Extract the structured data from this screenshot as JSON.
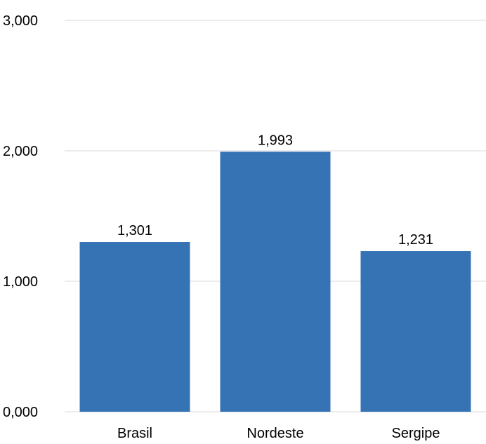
{
  "chart_data": {
    "type": "bar",
    "categories": [
      "Brasil",
      "Nordeste",
      "Sergipe"
    ],
    "values": [
      1.301,
      1.993,
      1.231
    ],
    "value_labels": [
      "1,301",
      "1,993",
      "1,231"
    ],
    "ylim": [
      0,
      3
    ],
    "y_ticks": [
      0,
      1,
      2,
      3
    ],
    "y_tick_labels": [
      "0,000",
      "1,000",
      "2,000",
      "3,000"
    ],
    "grid": true,
    "legend": "none",
    "bar_color": "#3673B5",
    "grid_color": "#d9d9d9"
  }
}
